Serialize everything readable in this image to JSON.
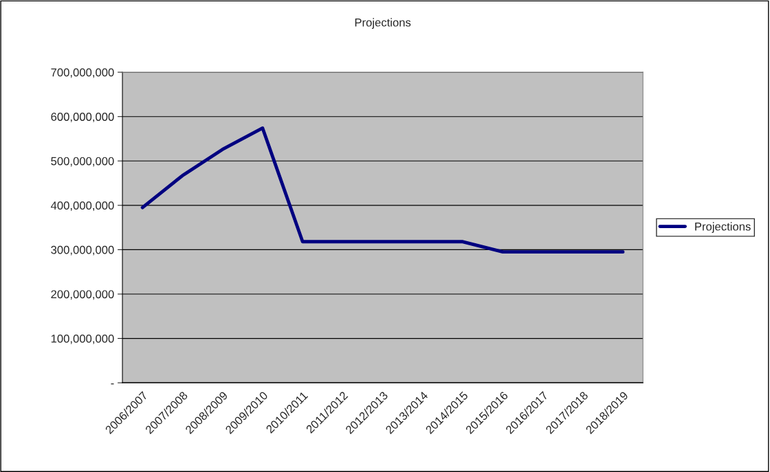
{
  "chart_data": {
    "type": "line",
    "title": "Projections",
    "categories": [
      "2006/2007",
      "2007/2008",
      "2008/2009",
      "2009/2010",
      "2010/2011",
      "2011/2012",
      "2012/2013",
      "2013/2014",
      "2014/2015",
      "2015/2016",
      "2016/2017",
      "2017/2018",
      "2018/2019"
    ],
    "series": [
      {
        "name": "Projections",
        "color": "#000080",
        "values": [
          395000000,
          467000000,
          526000000,
          574000000,
          318000000,
          318000000,
          318000000,
          318000000,
          318000000,
          295000000,
          295000000,
          295000000,
          295000000
        ]
      }
    ],
    "ylim": [
      0,
      700000000
    ],
    "yticks": [
      {
        "value": 0,
        "label": "-"
      },
      {
        "value": 100000000,
        "label": "100,000,000"
      },
      {
        "value": 200000000,
        "label": "200,000,000"
      },
      {
        "value": 300000000,
        "label": "300,000,000"
      },
      {
        "value": 400000000,
        "label": "400,000,000"
      },
      {
        "value": 500000000,
        "label": "500,000,000"
      },
      {
        "value": 600000000,
        "label": "600,000,000"
      },
      {
        "value": 700000000,
        "label": "700,000,000"
      }
    ],
    "grid": "y",
    "legend": "right",
    "marker": "none",
    "line_style": "solid"
  }
}
